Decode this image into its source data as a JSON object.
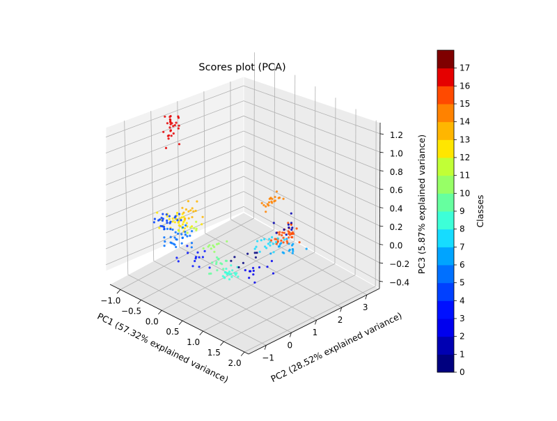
{
  "chart_data": {
    "type": "scatter",
    "projection": "3d",
    "title": "Scores plot (PCA)",
    "xlabel": "PC1 (57.32% explained variance)",
    "ylabel": "PC2 (28.52% explained variance)",
    "zlabel": "PC3 (5.87% explained variance)",
    "xlim": [
      -1.25,
      2.1
    ],
    "ylim": [
      -1.7,
      3.5
    ],
    "zlim": [
      -0.48,
      1.32
    ],
    "x_ticks": [
      "−1.0",
      "−0.5",
      "0.0",
      "0.5",
      "1.0",
      "1.5",
      "2.0"
    ],
    "y_ticks": [
      "−1",
      "0",
      "1",
      "2",
      "3"
    ],
    "z_ticks": [
      "−0.4",
      "−0.2",
      "0.0",
      "0.2",
      "0.4",
      "0.6",
      "0.8",
      "1.0",
      "1.2"
    ],
    "grid": true,
    "colormap": "jet",
    "colorbar": {
      "label": "Classes",
      "range": [
        0,
        17
      ],
      "ticks": [
        "0",
        "1",
        "2",
        "3",
        "4",
        "5",
        "6",
        "7",
        "8",
        "9",
        "10",
        "11",
        "12",
        "13",
        "14",
        "15",
        "16",
        "17"
      ],
      "colors": [
        "#00007f",
        "#0000b2",
        "#0000ee",
        "#0010ff",
        "#0040ff",
        "#0070ff",
        "#00a4ff",
        "#16dcff",
        "#3dffd8",
        "#66ff9f",
        "#97ff66",
        "#c1ff36",
        "#ffe600",
        "#ffb600",
        "#ff8200",
        "#ff4a00",
        "#e50000",
        "#7f0000"
      ]
    },
    "series": [
      {
        "cls": 16,
        "center": [
          -1.0,
          0.3,
          1.0
        ],
        "spread": [
          0.12,
          0.3,
          0.2
        ],
        "n": 28
      },
      {
        "cls": 14,
        "center": [
          0.1,
          2.5,
          0.15
        ],
        "spread": [
          0.12,
          0.3,
          0.05
        ],
        "n": 20
      },
      {
        "cls": 15,
        "center": [
          0.55,
          2.3,
          -0.1
        ],
        "spread": [
          0.15,
          0.4,
          0.08
        ],
        "n": 36
      },
      {
        "cls": 12,
        "center": [
          -0.5,
          -0.2,
          0.15
        ],
        "spread": [
          0.25,
          0.4,
          0.06
        ],
        "n": 34
      },
      {
        "cls": 13,
        "center": [
          -0.6,
          0.4,
          0.15
        ],
        "spread": [
          0.2,
          0.5,
          0.06
        ],
        "n": 14
      },
      {
        "cls": 11,
        "center": [
          -0.3,
          0.0,
          0.1
        ],
        "spread": [
          0.15,
          0.3,
          0.05
        ],
        "n": 8
      },
      {
        "cls": 10,
        "center": [
          0.2,
          0.1,
          0.0
        ],
        "spread": [
          0.2,
          0.3,
          0.05
        ],
        "n": 10
      },
      {
        "cls": 9,
        "center": [
          0.45,
          -0.2,
          -0.1
        ],
        "spread": [
          0.15,
          0.3,
          0.05
        ],
        "n": 14
      },
      {
        "cls": 8,
        "center": [
          0.7,
          -0.1,
          -0.15
        ],
        "spread": [
          0.12,
          0.3,
          0.05
        ],
        "n": 22
      },
      {
        "cls": 7,
        "center": [
          0.6,
          1.6,
          -0.1
        ],
        "spread": [
          0.2,
          0.4,
          0.05
        ],
        "n": 18
      },
      {
        "cls": 6,
        "center": [
          0.8,
          1.9,
          -0.15
        ],
        "spread": [
          0.2,
          0.5,
          0.05
        ],
        "n": 18
      },
      {
        "cls": 5,
        "center": [
          -0.2,
          -0.7,
          0.1
        ],
        "spread": [
          0.3,
          0.4,
          0.08
        ],
        "n": 30
      },
      {
        "cls": 4,
        "center": [
          -0.7,
          -0.5,
          0.15
        ],
        "spread": [
          0.2,
          0.4,
          0.06
        ],
        "n": 24
      },
      {
        "cls": 3,
        "center": [
          0.2,
          -0.8,
          0.0
        ],
        "spread": [
          0.3,
          0.4,
          0.06
        ],
        "n": 14
      },
      {
        "cls": 2,
        "center": [
          0.9,
          0.6,
          -0.15
        ],
        "spread": [
          0.2,
          0.8,
          0.06
        ],
        "n": 12
      },
      {
        "cls": 1,
        "center": [
          0.3,
          2.6,
          -0.1
        ],
        "spread": [
          0.2,
          0.4,
          0.06
        ],
        "n": 10
      },
      {
        "cls": 0,
        "center": [
          0.6,
          0.8,
          -0.1
        ],
        "spread": [
          0.3,
          0.6,
          0.06
        ],
        "n": 8
      }
    ]
  }
}
